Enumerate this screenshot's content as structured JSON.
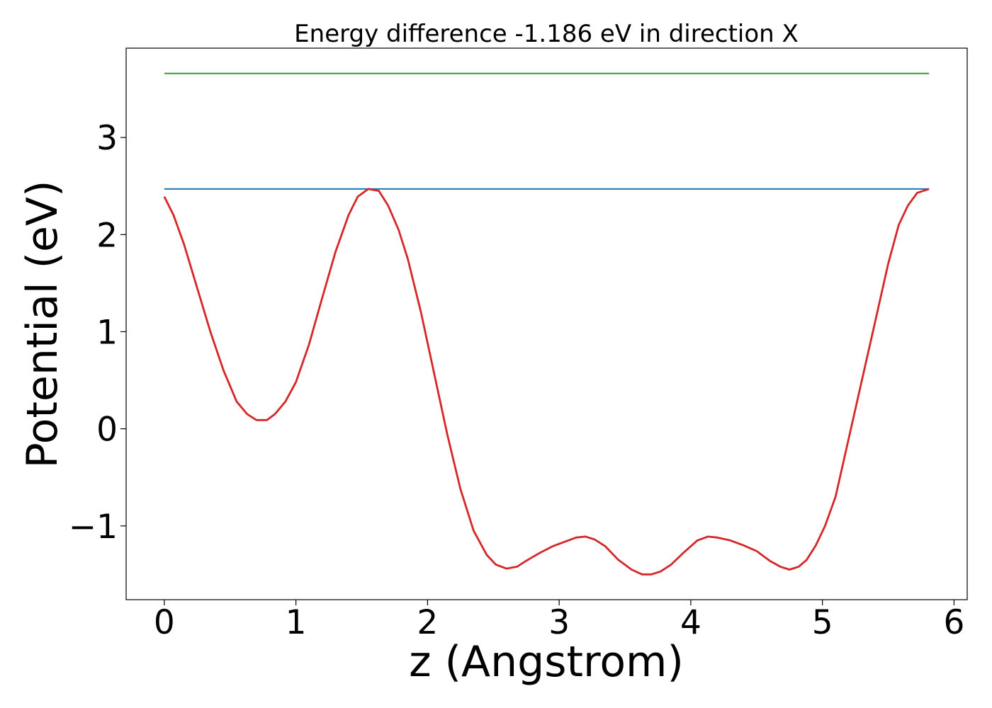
{
  "chart_data": {
    "type": "line",
    "title": "Energy difference -1.186 eV in direction X",
    "xlabel": "z (Angstrom)",
    "ylabel": "Potential (eV)",
    "xlim": [
      -0.29,
      6.1
    ],
    "ylim": [
      -1.76,
      3.92
    ],
    "grid": false,
    "xticks": [
      0,
      1,
      2,
      3,
      4,
      5,
      6
    ],
    "xtick_labels": [
      "0",
      "1",
      "2",
      "3",
      "4",
      "5",
      "6"
    ],
    "yticks": [
      -1,
      0,
      1,
      2,
      3
    ],
    "ytick_labels": [
      "−1",
      "0",
      "1",
      "2",
      "3"
    ],
    "series": [
      {
        "color": "#2ca02c",
        "x": [
          0,
          5.81
        ],
        "y": [
          3.66,
          3.66
        ]
      },
      {
        "color": "#1f77b4",
        "x": [
          0,
          5.81
        ],
        "y": [
          2.47,
          2.47
        ]
      },
      {
        "color": "#d62728",
        "x": [
          0.0,
          0.07,
          0.15,
          0.25,
          0.35,
          0.45,
          0.55,
          0.63,
          0.7,
          0.78,
          0.84,
          0.92,
          1.0,
          1.1,
          1.2,
          1.3,
          1.4,
          1.47,
          1.55,
          1.63,
          1.7,
          1.78,
          1.85,
          1.95,
          2.05,
          2.15,
          2.25,
          2.35,
          2.45,
          2.52,
          2.6,
          2.68,
          2.75,
          2.85,
          2.95,
          3.05,
          3.13,
          3.2,
          3.27,
          3.35,
          3.45,
          3.55,
          3.63,
          3.7,
          3.77,
          3.85,
          3.95,
          4.05,
          4.13,
          4.2,
          4.3,
          4.4,
          4.5,
          4.6,
          4.68,
          4.75,
          4.82,
          4.88,
          4.95,
          5.02,
          5.1,
          5.2,
          5.3,
          5.4,
          5.5,
          5.58,
          5.65,
          5.72,
          5.81
        ],
        "y": [
          2.39,
          2.2,
          1.9,
          1.45,
          1.0,
          0.6,
          0.28,
          0.15,
          0.09,
          0.09,
          0.15,
          0.28,
          0.48,
          0.87,
          1.35,
          1.82,
          2.2,
          2.39,
          2.47,
          2.45,
          2.3,
          2.05,
          1.75,
          1.2,
          0.57,
          -0.06,
          -0.62,
          -1.05,
          -1.3,
          -1.4,
          -1.44,
          -1.42,
          -1.36,
          -1.28,
          -1.21,
          -1.16,
          -1.12,
          -1.11,
          -1.14,
          -1.21,
          -1.35,
          -1.45,
          -1.5,
          -1.5,
          -1.47,
          -1.4,
          -1.27,
          -1.15,
          -1.11,
          -1.12,
          -1.15,
          -1.2,
          -1.26,
          -1.36,
          -1.42,
          -1.45,
          -1.42,
          -1.35,
          -1.2,
          -1.0,
          -0.7,
          -0.1,
          0.5,
          1.1,
          1.7,
          2.1,
          2.3,
          2.43,
          2.47
        ]
      }
    ]
  }
}
